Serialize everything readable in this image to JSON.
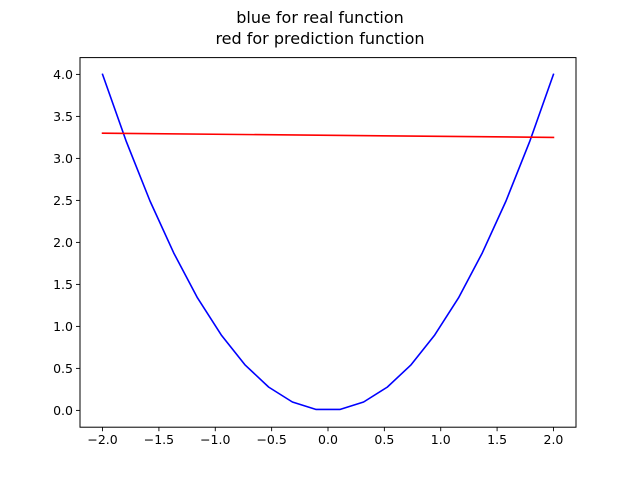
{
  "chart_data": {
    "type": "line",
    "title_lines": [
      "blue for real function",
      "red for prediction function"
    ],
    "xlabel": "",
    "ylabel": "",
    "xlim": [
      -2.2,
      2.2
    ],
    "ylim": [
      -0.2,
      4.2
    ],
    "xticks": [
      -2.0,
      -1.5,
      -1.0,
      -0.5,
      0.0,
      0.5,
      1.0,
      1.5,
      2.0
    ],
    "xtick_labels": [
      "−2.0",
      "−1.5",
      "−1.0",
      "−0.5",
      "0.0",
      "0.5",
      "1.0",
      "1.5",
      "2.0"
    ],
    "yticks": [
      0.0,
      0.5,
      1.0,
      1.5,
      2.0,
      2.5,
      3.0,
      3.5,
      4.0
    ],
    "ytick_labels": [
      "0.0",
      "0.5",
      "1.0",
      "1.5",
      "2.0",
      "2.5",
      "3.0",
      "3.5",
      "4.0"
    ],
    "grid": false,
    "series": [
      {
        "color": "#0000ff",
        "x": [
          -2.0,
          -1.789,
          -1.579,
          -1.368,
          -1.158,
          -0.947,
          -0.737,
          -0.526,
          -0.316,
          -0.105,
          0.105,
          0.316,
          0.526,
          0.737,
          0.947,
          1.158,
          1.368,
          1.579,
          1.789,
          2.0
        ],
        "y": [
          4.0,
          3.2,
          2.493,
          1.873,
          1.34,
          0.898,
          0.543,
          0.277,
          0.1,
          0.011,
          0.011,
          0.1,
          0.277,
          0.543,
          0.898,
          1.34,
          1.873,
          2.493,
          3.2,
          4.0
        ]
      },
      {
        "color": "#ff0000",
        "x": [
          -2.0,
          2.0
        ],
        "y": [
          3.3,
          3.25
        ]
      }
    ]
  }
}
